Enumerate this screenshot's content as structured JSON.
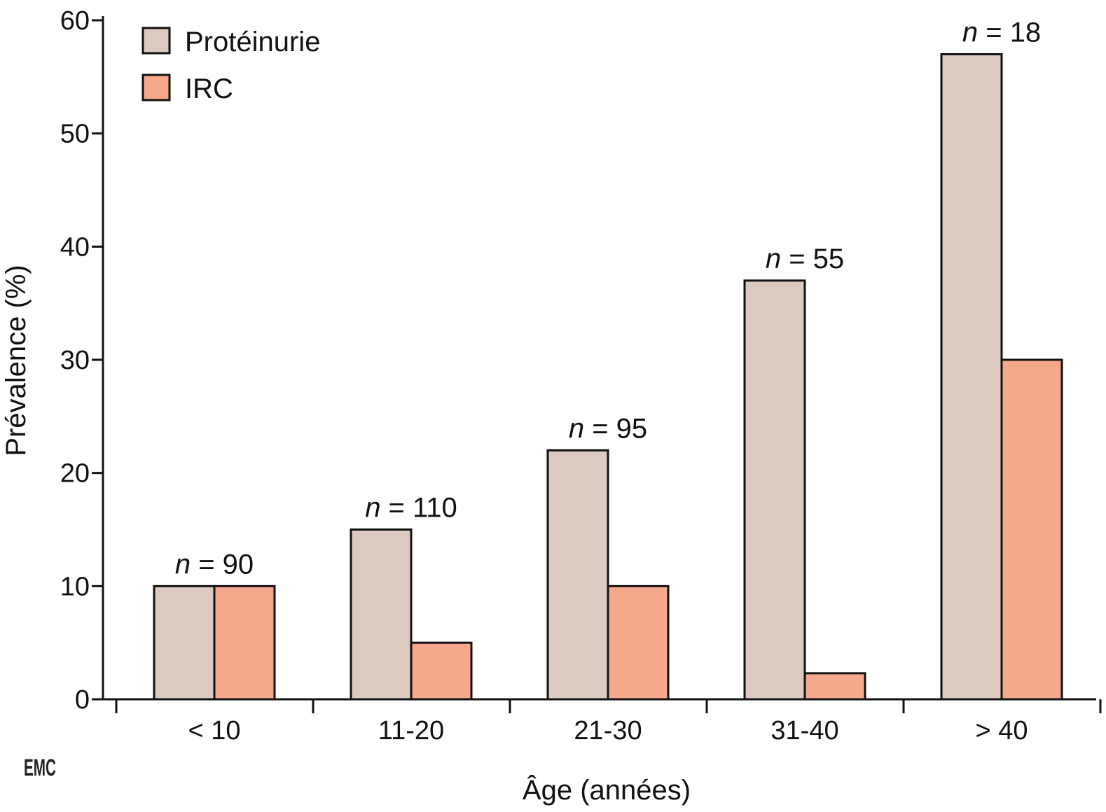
{
  "chart_data": {
    "type": "bar",
    "xlabel": "Âge (années)",
    "ylabel": "Prévalence (%)",
    "ylim": [
      0,
      60
    ],
    "yticks": [
      0,
      10,
      20,
      30,
      40,
      50,
      60
    ],
    "categories": [
      "< 10",
      "11-20",
      "21-30",
      "31-40",
      "> 40"
    ],
    "series": [
      {
        "name": "Protéinurie",
        "color": "#dcc9c0",
        "values": [
          10,
          15,
          22,
          37,
          57
        ]
      },
      {
        "name": "IRC",
        "color": "#f5a88c",
        "values": [
          10,
          5,
          10,
          2.3,
          30
        ]
      }
    ],
    "annotations": {
      "n_prefix": "n",
      "n_values": [
        "= 90",
        "= 110",
        "= 95",
        "= 55",
        "= 18"
      ]
    },
    "legend_position": "top-left",
    "grid": false
  },
  "logo_text": "EMC"
}
